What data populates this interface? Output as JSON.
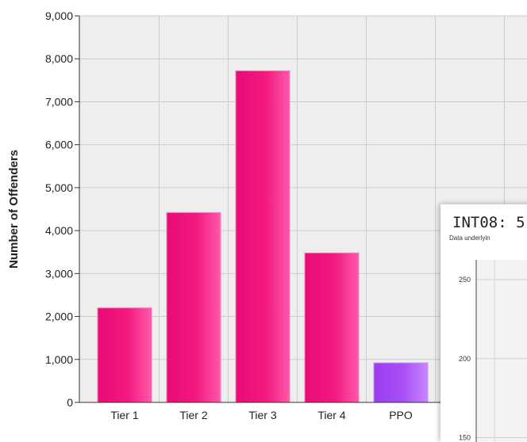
{
  "chart_data": {
    "type": "bar",
    "title": "",
    "xlabel": "",
    "ylabel": "Number of Offenders",
    "ylim": [
      0,
      9000
    ],
    "yticks": [
      0,
      1000,
      2000,
      3000,
      4000,
      5000,
      6000,
      7000,
      8000,
      9000
    ],
    "ytick_labels": [
      "0",
      "1,000",
      "2,000",
      "3,000",
      "4,000",
      "5,000",
      "6,000",
      "7,000",
      "8,000",
      "9,000"
    ],
    "categories": [
      "Tier 1",
      "Tier 2",
      "Tier 3",
      "Tier 4",
      "PPO",
      ""
    ],
    "values": [
      2200,
      4420,
      7720,
      3480,
      920,
      100
    ],
    "bar_colors": [
      "#f0157f",
      "#f0157f",
      "#f0157f",
      "#f0157f",
      "#a64ff2",
      "#f0157f"
    ],
    "grid": true,
    "legend": "none"
  },
  "overlay": {
    "title": "INT08: 5",
    "subtitle": "Data underlyin",
    "chart_data": {
      "type": "bar",
      "yticks": [
        150,
        200,
        250
      ],
      "ytick_labels": [
        "150",
        "200",
        "250"
      ]
    }
  },
  "colors": {
    "plot_background": "#eeeeee",
    "grid": "#cccccc",
    "axis": "#333333"
  }
}
